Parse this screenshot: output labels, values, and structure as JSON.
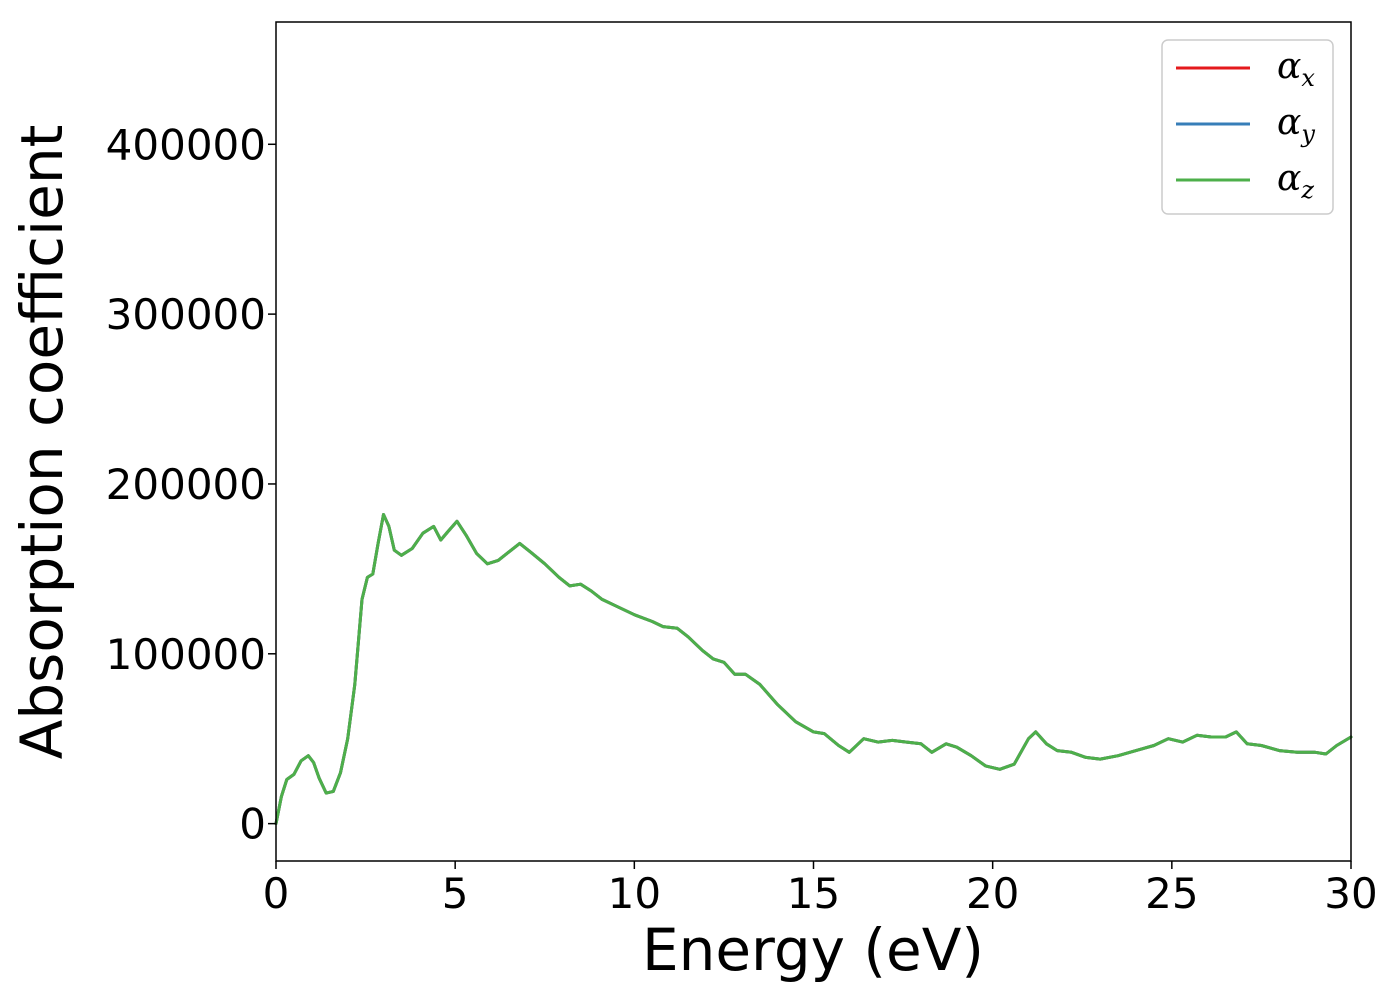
{
  "chart_data": {
    "type": "line",
    "title": "",
    "xlabel": "Energy (eV)",
    "ylabel": "Absorption coefficient",
    "xlim": [
      0,
      30
    ],
    "ylim": [
      -22000,
      472000
    ],
    "xticks": [
      0,
      5,
      10,
      15,
      20,
      25,
      30
    ],
    "xtick_labels": [
      "0",
      "5",
      "10",
      "15",
      "20",
      "25",
      "30"
    ],
    "yticks": [
      0,
      100000,
      200000,
      300000,
      400000
    ],
    "ytick_labels": [
      "0",
      "100000",
      "200000",
      "300000",
      "400000"
    ],
    "grid": false,
    "legend_position": "top-right",
    "x": [
      0,
      0.15,
      0.3,
      0.5,
      0.7,
      0.9,
      1.05,
      1.2,
      1.4,
      1.6,
      1.8,
      2.0,
      2.2,
      2.4,
      2.55,
      2.7,
      2.85,
      3.0,
      3.15,
      3.3,
      3.5,
      3.8,
      4.1,
      4.4,
      4.6,
      4.8,
      5.05,
      5.3,
      5.6,
      5.9,
      6.2,
      6.5,
      6.8,
      7.1,
      7.5,
      7.9,
      8.2,
      8.5,
      8.8,
      9.1,
      9.5,
      10.0,
      10.5,
      10.8,
      11.2,
      11.5,
      11.9,
      12.2,
      12.5,
      12.8,
      13.1,
      13.5,
      14.0,
      14.5,
      15.0,
      15.3,
      15.7,
      16.0,
      16.4,
      16.8,
      17.2,
      17.6,
      18.0,
      18.3,
      18.7,
      19.0,
      19.4,
      19.8,
      20.2,
      20.6,
      21.0,
      21.2,
      21.5,
      21.8,
      22.2,
      22.6,
      23.0,
      23.5,
      24.0,
      24.5,
      24.9,
      25.3,
      25.7,
      26.1,
      26.5,
      26.8,
      27.1,
      27.5,
      28.0,
      28.5,
      29.0,
      29.3,
      29.6,
      30.0
    ],
    "series": [
      {
        "name": "α",
        "subscript": "x",
        "color": "#e41a1c",
        "values": [
          0,
          16000,
          26000,
          29000,
          37000,
          40000,
          36000,
          27000,
          18000,
          19000,
          30000,
          50000,
          82000,
          132000,
          145000,
          147000,
          165000,
          182000,
          175000,
          161000,
          158000,
          162000,
          171000,
          175000,
          167000,
          172000,
          178000,
          170000,
          159000,
          153000,
          155000,
          160000,
          165000,
          160000,
          153000,
          145000,
          140000,
          141000,
          137000,
          132000,
          128000,
          123000,
          119000,
          116000,
          115000,
          110000,
          102000,
          97000,
          95000,
          88000,
          88000,
          82000,
          70000,
          60000,
          54000,
          53000,
          46000,
          42000,
          50000,
          48000,
          49000,
          48000,
          47000,
          42000,
          47000,
          45000,
          40000,
          34000,
          32000,
          35000,
          50000,
          54000,
          47000,
          43000,
          42000,
          39000,
          38000,
          40000,
          43000,
          46000,
          50000,
          48000,
          52000,
          51000,
          51000,
          54000,
          47000,
          46000,
          43000,
          42000,
          42000,
          41000,
          46000,
          51000
        ]
      },
      {
        "name": "α",
        "subscript": "y",
        "color": "#377eb8",
        "values": [
          0,
          16000,
          26000,
          29000,
          37000,
          40000,
          36000,
          27000,
          18000,
          19000,
          30000,
          50000,
          82000,
          132000,
          145000,
          147000,
          165000,
          182000,
          175000,
          161000,
          158000,
          162000,
          171000,
          175000,
          167000,
          172000,
          178000,
          170000,
          159000,
          153000,
          155000,
          160000,
          165000,
          160000,
          153000,
          145000,
          140000,
          141000,
          137000,
          132000,
          128000,
          123000,
          119000,
          116000,
          115000,
          110000,
          102000,
          97000,
          95000,
          88000,
          88000,
          82000,
          70000,
          60000,
          54000,
          53000,
          46000,
          42000,
          50000,
          48000,
          49000,
          48000,
          47000,
          42000,
          47000,
          45000,
          40000,
          34000,
          32000,
          35000,
          50000,
          54000,
          47000,
          43000,
          42000,
          39000,
          38000,
          40000,
          43000,
          46000,
          50000,
          48000,
          52000,
          51000,
          51000,
          54000,
          47000,
          46000,
          43000,
          42000,
          42000,
          41000,
          46000,
          51000
        ]
      },
      {
        "name": "α",
        "subscript": "z",
        "color": "#4daf4a",
        "values": [
          0,
          16000,
          26000,
          29000,
          37000,
          40000,
          36000,
          27000,
          18000,
          19000,
          30000,
          50000,
          82000,
          132000,
          145000,
          147000,
          165000,
          182000,
          175000,
          161000,
          158000,
          162000,
          171000,
          175000,
          167000,
          172000,
          178000,
          170000,
          159000,
          153000,
          155000,
          160000,
          165000,
          160000,
          153000,
          145000,
          140000,
          141000,
          137000,
          132000,
          128000,
          123000,
          119000,
          116000,
          115000,
          110000,
          102000,
          97000,
          95000,
          88000,
          88000,
          82000,
          70000,
          60000,
          54000,
          53000,
          46000,
          42000,
          50000,
          48000,
          49000,
          48000,
          47000,
          42000,
          47000,
          45000,
          40000,
          34000,
          32000,
          35000,
          50000,
          54000,
          47000,
          43000,
          42000,
          39000,
          38000,
          40000,
          43000,
          46000,
          50000,
          48000,
          52000,
          51000,
          51000,
          54000,
          47000,
          46000,
          43000,
          42000,
          42000,
          41000,
          46000,
          51000
        ]
      }
    ]
  }
}
